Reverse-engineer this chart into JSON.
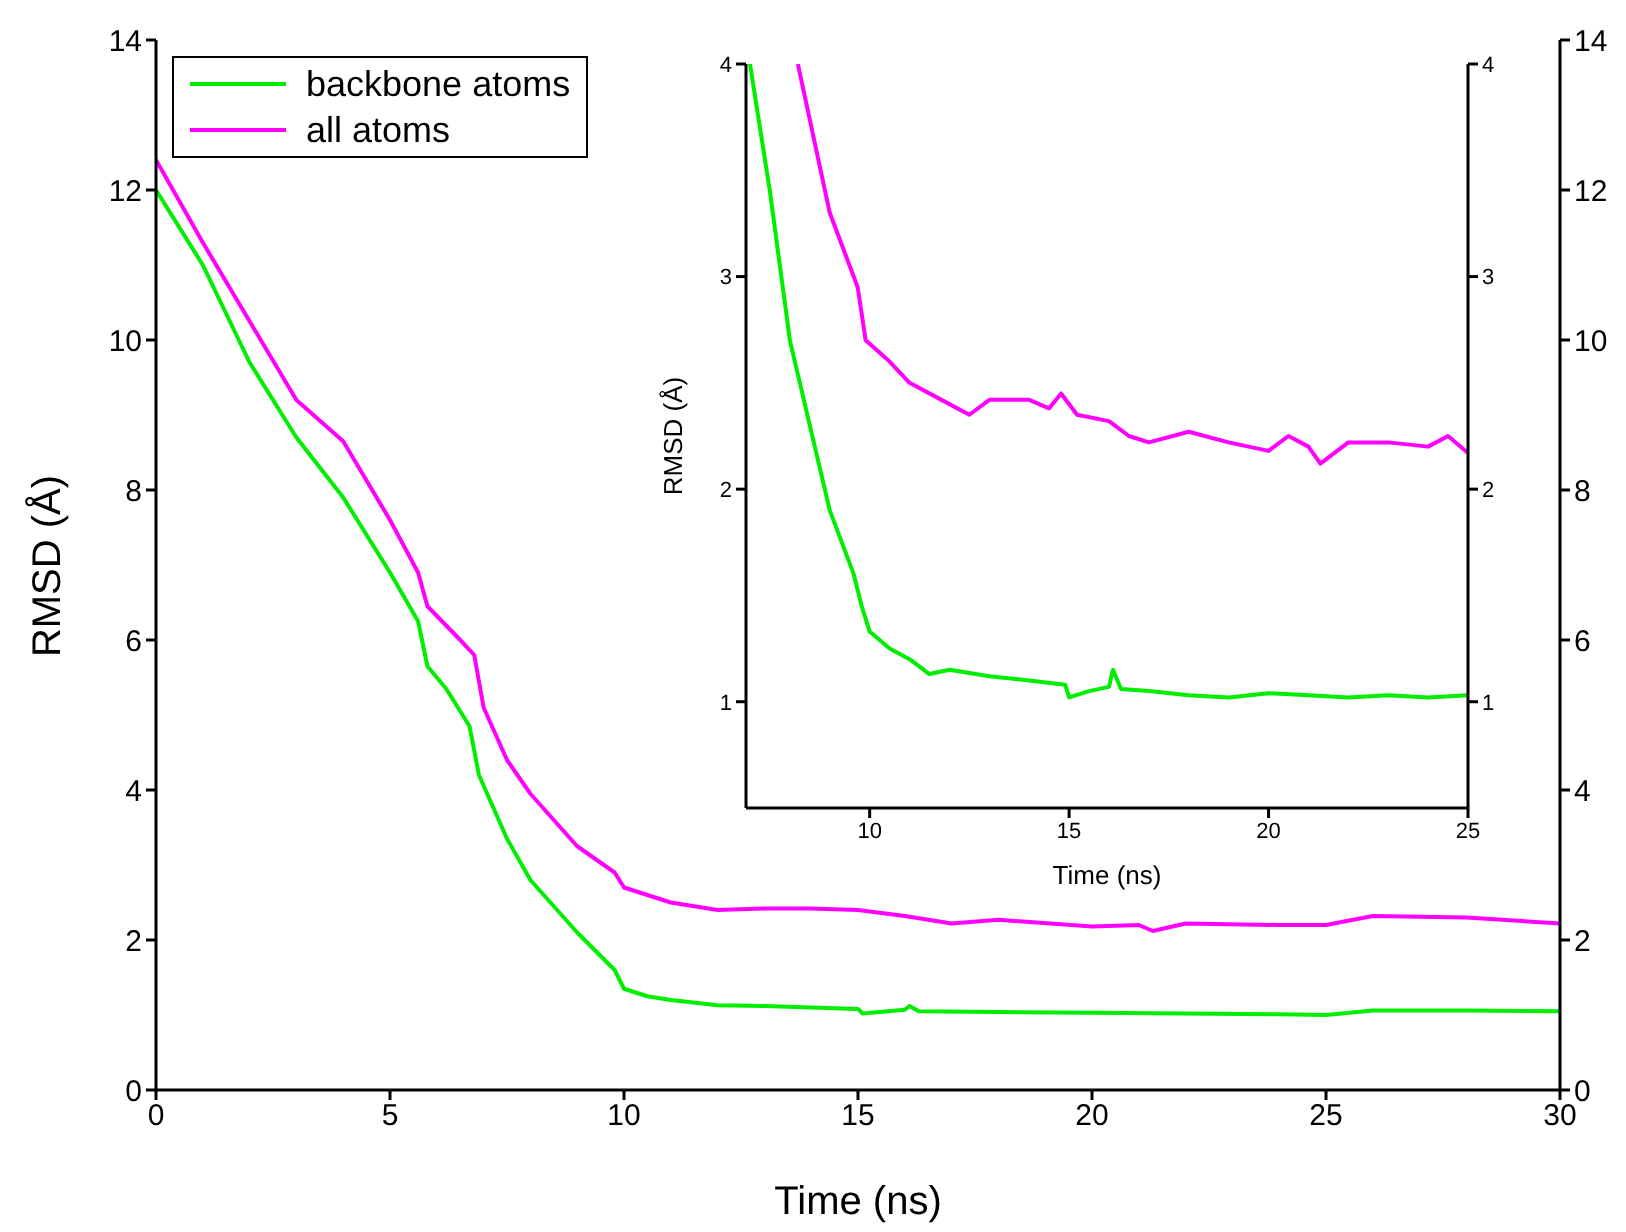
{
  "chart_data": [
    {
      "type": "line",
      "xlabel": "Time (ns)",
      "ylabel": "RMSD (Å)",
      "xlim": [
        0,
        30
      ],
      "xticks": [
        0,
        5,
        10,
        15,
        20,
        25,
        30
      ],
      "ylim": [
        0,
        14
      ],
      "yticks": [
        0,
        2,
        4,
        6,
        8,
        10,
        12,
        14
      ],
      "y2lim": [
        0,
        14
      ],
      "y2ticks": [
        0,
        2,
        4,
        6,
        8,
        10,
        12,
        14
      ],
      "legend": "top left",
      "series": [
        {
          "name": "backbone atoms",
          "color": "#00ee00",
          "x": [
            0,
            1,
            2,
            3,
            4,
            5,
            5.6,
            5.8,
            6.2,
            6.7,
            6.9,
            7.5,
            8,
            9,
            9.8,
            10,
            10.5,
            11,
            12,
            13,
            14,
            15,
            15.1,
            16,
            16.1,
            16.3,
            18,
            20,
            22,
            24,
            25,
            26,
            28,
            30
          ],
          "values": [
            12.0,
            11.0,
            9.7,
            8.7,
            7.9,
            6.9,
            6.25,
            5.65,
            5.35,
            4.85,
            4.2,
            3.35,
            2.8,
            2.1,
            1.6,
            1.35,
            1.25,
            1.2,
            1.13,
            1.12,
            1.1,
            1.08,
            1.02,
            1.07,
            1.12,
            1.05,
            1.04,
            1.03,
            1.02,
            1.01,
            1.0,
            1.06,
            1.06,
            1.05
          ]
        },
        {
          "name": "all atoms",
          "color": "#ff00ff",
          "x": [
            0,
            1,
            2,
            3,
            4,
            5,
            5.6,
            5.8,
            6.5,
            6.8,
            7,
            7.5,
            8,
            9,
            9.8,
            10,
            11,
            12,
            13,
            14,
            15,
            16,
            17,
            18,
            20,
            21,
            21.3,
            22,
            24,
            25,
            26,
            28,
            30
          ],
          "values": [
            12.4,
            11.3,
            10.25,
            9.2,
            8.65,
            7.6,
            6.9,
            6.45,
            6.0,
            5.8,
            5.1,
            4.4,
            3.95,
            3.25,
            2.9,
            2.7,
            2.5,
            2.4,
            2.42,
            2.42,
            2.4,
            2.32,
            2.22,
            2.27,
            2.18,
            2.2,
            2.12,
            2.22,
            2.2,
            2.2,
            2.32,
            2.3,
            2.22
          ]
        }
      ]
    },
    {
      "type": "line",
      "xlabel": "Time (ns)",
      "ylabel": "RMSD (Å)",
      "xlim": [
        6.9,
        25
      ],
      "xticks": [
        10,
        15,
        20,
        25
      ],
      "ylim": [
        0.5,
        4
      ],
      "yticks": [
        1,
        2,
        3,
        4
      ],
      "y2lim": [
        0.5,
        4
      ],
      "y2ticks": [
        1,
        2,
        3,
        4
      ],
      "series": [
        {
          "color": "#00ee00",
          "x": [
            7,
            7.5,
            8,
            8.5,
            9,
            9.6,
            9.8,
            10,
            10.5,
            11,
            11.5,
            12,
            13,
            14,
            14.9,
            15,
            15.5,
            16,
            16.1,
            16.3,
            17,
            18,
            19,
            20,
            21,
            22,
            23,
            24,
            25
          ],
          "values": [
            4.0,
            3.4,
            2.7,
            2.3,
            1.9,
            1.6,
            1.45,
            1.33,
            1.25,
            1.2,
            1.13,
            1.15,
            1.12,
            1.1,
            1.08,
            1.02,
            1.05,
            1.07,
            1.15,
            1.06,
            1.05,
            1.03,
            1.02,
            1.04,
            1.03,
            1.02,
            1.03,
            1.02,
            1.03
          ]
        },
        {
          "color": "#ff00ff",
          "x": [
            8.2,
            9,
            9.7,
            9.9,
            10.5,
            11,
            12,
            12.5,
            13,
            14,
            14.5,
            14.8,
            15.2,
            16,
            16.5,
            17,
            18,
            19,
            20,
            20.5,
            21,
            21.3,
            22,
            23,
            24,
            24.5,
            25
          ],
          "values": [
            4.0,
            3.3,
            2.95,
            2.7,
            2.6,
            2.5,
            2.4,
            2.35,
            2.42,
            2.42,
            2.38,
            2.45,
            2.35,
            2.32,
            2.25,
            2.22,
            2.27,
            2.22,
            2.18,
            2.25,
            2.2,
            2.12,
            2.22,
            2.22,
            2.2,
            2.25,
            2.17
          ]
        }
      ]
    }
  ]
}
